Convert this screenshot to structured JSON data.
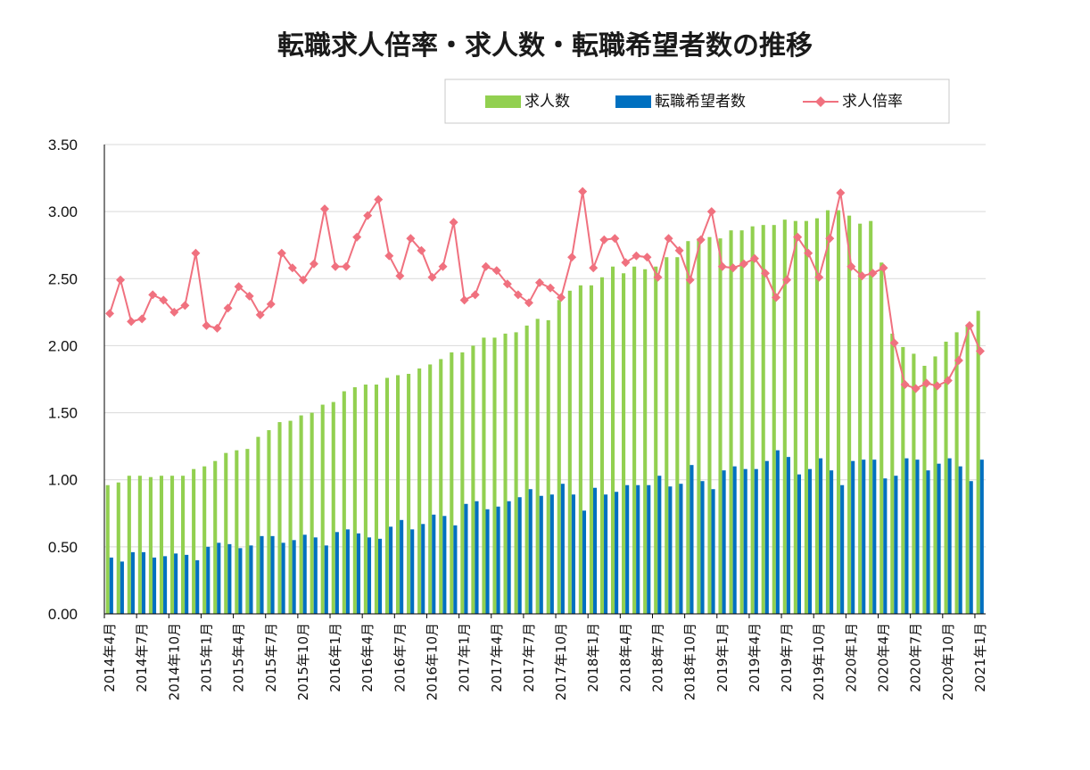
{
  "chart_data": {
    "type": "bar",
    "title": "転職求人倍率・求人数・転職希望者数の推移",
    "ylim": [
      0,
      3.5
    ],
    "yticks": [
      "0.00",
      "0.50",
      "1.00",
      "1.50",
      "2.00",
      "2.50",
      "3.00",
      "3.50"
    ],
    "x_tick_labels": [
      "2014年4月",
      "2014年7月",
      "2014年10月",
      "2015年1月",
      "2015年4月",
      "2015年7月",
      "2015年10月",
      "2016年1月",
      "2016年4月",
      "2016年7月",
      "2016年10月",
      "2017年1月",
      "2017年4月",
      "2017年7月",
      "2017年10月",
      "2018年1月",
      "2018年4月",
      "2018年7月",
      "2018年10月",
      "2019年1月",
      "2019年4月",
      "2019年7月",
      "2019年10月",
      "2020年1月",
      "2020年4月",
      "2020年7月",
      "2020年10月",
      "2021年1月"
    ],
    "legend": {
      "position": "top-right",
      "items": [
        "求人数",
        "転職希望者数",
        "求人倍率"
      ]
    },
    "colors": {
      "求人数": "#92d050",
      "転職希望者数": "#0070c0",
      "求人倍率": "#f0717f"
    },
    "series": [
      {
        "name": "求人数",
        "type": "bar",
        "values": [
          0.96,
          0.98,
          1.03,
          1.03,
          1.02,
          1.03,
          1.03,
          1.03,
          1.08,
          1.1,
          1.14,
          1.2,
          1.22,
          1.23,
          1.32,
          1.37,
          1.43,
          1.44,
          1.48,
          1.5,
          1.56,
          1.58,
          1.66,
          1.69,
          1.71,
          1.71,
          1.76,
          1.78,
          1.79,
          1.83,
          1.86,
          1.9,
          1.95,
          1.95,
          2.0,
          2.06,
          2.06,
          2.09,
          2.1,
          2.15,
          2.2,
          2.19,
          2.34,
          2.41,
          2.45,
          2.45,
          2.51,
          2.59,
          2.54,
          2.59,
          2.57,
          2.59,
          2.66,
          2.66,
          2.78,
          2.8,
          2.81,
          2.8,
          2.86,
          2.86,
          2.89,
          2.9,
          2.9,
          2.94,
          2.93,
          2.93,
          2.95,
          3.01,
          3.01,
          2.97,
          2.91,
          2.93,
          2.62,
          2.09,
          1.99,
          1.94,
          1.85,
          1.92,
          2.03,
          2.1,
          2.15,
          2.26
        ]
      },
      {
        "name": "転職希望者数",
        "type": "bar",
        "values": [
          0.42,
          0.39,
          0.46,
          0.46,
          0.42,
          0.43,
          0.45,
          0.44,
          0.4,
          0.5,
          0.53,
          0.52,
          0.49,
          0.51,
          0.58,
          0.58,
          0.53,
          0.55,
          0.59,
          0.57,
          0.51,
          0.61,
          0.63,
          0.6,
          0.57,
          0.56,
          0.65,
          0.7,
          0.63,
          0.67,
          0.74,
          0.73,
          0.66,
          0.82,
          0.84,
          0.78,
          0.8,
          0.84,
          0.87,
          0.93,
          0.88,
          0.89,
          0.97,
          0.89,
          0.77,
          0.94,
          0.89,
          0.91,
          0.96,
          0.96,
          0.96,
          1.03,
          0.95,
          0.97,
          1.11,
          0.99,
          0.93,
          1.07,
          1.1,
          1.08,
          1.08,
          1.14,
          1.22,
          1.17,
          1.04,
          1.08,
          1.16,
          1.07,
          0.96,
          1.14,
          1.15,
          1.15,
          1.01,
          1.03,
          1.16,
          1.15,
          1.07,
          1.12,
          1.16,
          1.1,
          0.99,
          1.15
        ]
      },
      {
        "name": "求人倍率",
        "type": "line",
        "values": [
          2.24,
          2.49,
          2.18,
          2.2,
          2.38,
          2.34,
          2.25,
          2.3,
          2.69,
          2.15,
          2.13,
          2.28,
          2.44,
          2.37,
          2.23,
          2.31,
          2.69,
          2.58,
          2.49,
          2.61,
          3.02,
          2.59,
          2.59,
          2.81,
          2.97,
          3.09,
          2.67,
          2.52,
          2.8,
          2.71,
          2.51,
          2.59,
          2.92,
          2.34,
          2.38,
          2.59,
          2.56,
          2.46,
          2.38,
          2.32,
          2.47,
          2.43,
          2.36,
          2.66,
          3.15,
          2.58,
          2.79,
          2.8,
          2.62,
          2.67,
          2.66,
          2.51,
          2.8,
          2.71,
          2.49,
          2.79,
          3.0,
          2.59,
          2.58,
          2.61,
          2.65,
          2.54,
          2.36,
          2.49,
          2.81,
          2.69,
          2.51,
          2.8,
          3.14,
          2.59,
          2.52,
          2.54,
          2.58,
          2.02,
          1.71,
          1.68,
          1.72,
          1.7,
          1.74,
          1.89,
          2.15,
          1.96
        ]
      }
    ]
  }
}
